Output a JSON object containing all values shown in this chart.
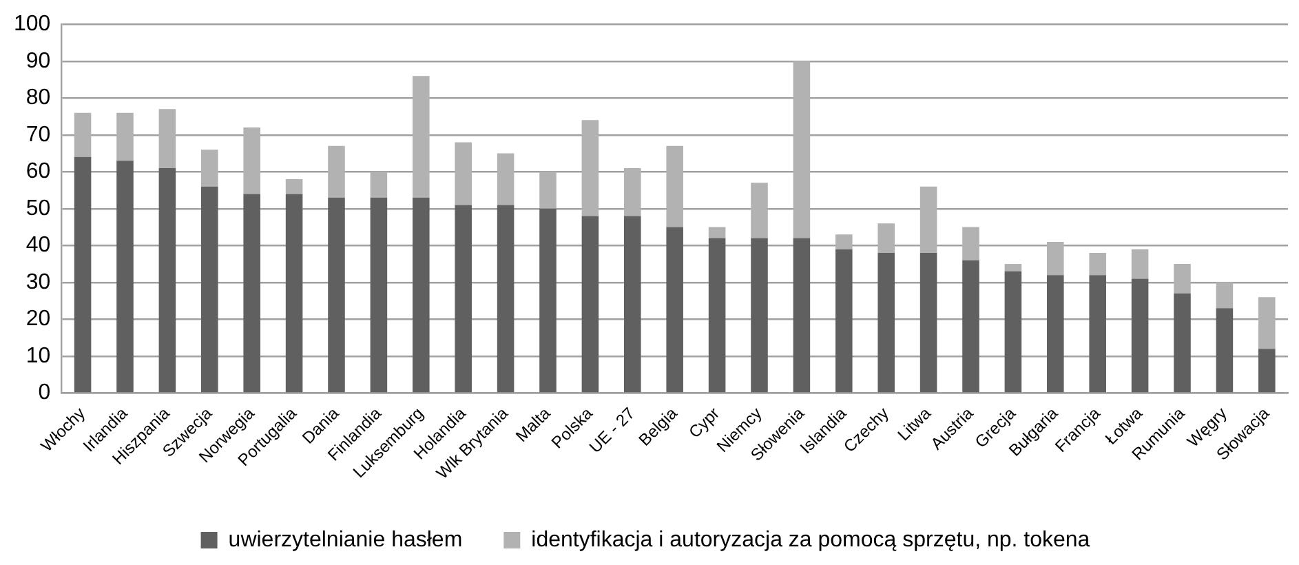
{
  "chart_data": {
    "type": "bar",
    "stacked": true,
    "categories": [
      "Włochy",
      "Irlandia",
      "Hiszpania",
      "Szwecja",
      "Norwegia",
      "Portugalia",
      "Dania",
      "Finlandia",
      "Luksemburg",
      "Holandia",
      "Wlk Brytania",
      "Malta",
      "Polska",
      "UE - 27",
      "Belgia",
      "Cypr",
      "Niemcy",
      "Słowenia",
      "Islandia",
      "Czechy",
      "Litwa",
      "Austria",
      "Grecja",
      "Bułgaria",
      "Francja",
      "Łotwa",
      "Rumunia",
      "Węgry",
      "Słowacja"
    ],
    "series": [
      {
        "name": "uwierzytelnianie hasłem",
        "color": "#606060",
        "values": [
          64,
          63,
          61,
          56,
          54,
          54,
          53,
          53,
          53,
          51,
          51,
          50,
          48,
          48,
          45,
          42,
          42,
          42,
          39,
          38,
          38,
          36,
          33,
          32,
          32,
          31,
          27,
          23,
          12
        ]
      },
      {
        "name": "identyfikacja i autoryzacja za pomocą sprzętu, np. tokena",
        "color": "#b2b2b2",
        "values": [
          12,
          13,
          16,
          10,
          18,
          4,
          14,
          7,
          33,
          17,
          14,
          10,
          26,
          13,
          22,
          3,
          15,
          48,
          4,
          8,
          18,
          9,
          2,
          9,
          6,
          8,
          8,
          7,
          14
        ]
      }
    ],
    "ylim": [
      0,
      100
    ],
    "yticks": [
      0,
      10,
      20,
      30,
      40,
      50,
      60,
      70,
      80,
      90,
      100
    ],
    "grid": "y",
    "legend": "bottom"
  }
}
